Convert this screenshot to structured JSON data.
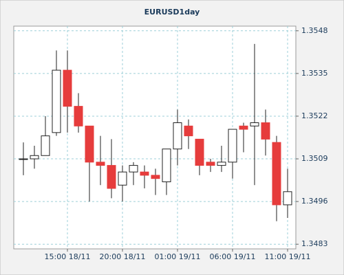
{
  "chart_data": {
    "type": "candlestick",
    "title": "EURUSD1day",
    "categories": [
      null,
      null,
      null,
      null,
      "15:00 18/11",
      null,
      null,
      null,
      null,
      "20:00 18/11",
      null,
      null,
      null,
      null,
      "01:00 19/11",
      null,
      null,
      null,
      null,
      "06:00 19/11",
      null,
      null,
      null,
      null,
      "11:00 19/11"
    ],
    "open": [
      1.3509,
      1.3509,
      1.351,
      1.3517,
      1.3536,
      1.3525,
      1.3519,
      1.3508,
      1.3507,
      1.3501,
      1.3505,
      1.3505,
      1.3504,
      1.3502,
      1.3512,
      1.3519,
      1.3515,
      1.3508,
      1.3507,
      1.3508,
      1.3519,
      1.3519,
      1.352,
      1.3514,
      1.3495
    ],
    "high": [
      1.3514,
      1.3513,
      1.3522,
      1.3542,
      1.3542,
      1.3529,
      1.3519,
      1.3516,
      1.3515,
      1.3507,
      1.3508,
      1.3507,
      1.3506,
      1.3512,
      1.3524,
      1.3521,
      1.3515,
      1.3509,
      1.3513,
      1.3518,
      1.352,
      1.3544,
      1.3524,
      1.3516,
      1.3506
    ],
    "low": [
      1.3504,
      1.3506,
      1.351,
      1.3516,
      1.3517,
      1.3517,
      1.3496,
      1.3501,
      1.3497,
      1.3496,
      1.3501,
      1.35,
      1.3498,
      1.3498,
      1.3507,
      1.3512,
      1.3504,
      1.3505,
      1.3505,
      1.3503,
      1.3511,
      1.3501,
      1.351,
      1.349,
      1.3491
    ],
    "close": [
      1.3509,
      1.351,
      1.3516,
      1.3536,
      1.3525,
      1.3519,
      1.3508,
      1.3507,
      1.35,
      1.3505,
      1.3507,
      1.3504,
      1.3503,
      1.3512,
      1.352,
      1.3516,
      1.3507,
      1.3507,
      1.3508,
      1.3518,
      1.3518,
      1.352,
      1.3515,
      1.3495,
      1.3499
    ],
    "up_color": "#ffffff",
    "down_color": "#e63c3c",
    "ylim": [
      1.3482,
      1.3549
    ],
    "yticks": [
      1.3483,
      1.3496,
      1.3509,
      1.3522,
      1.3535,
      1.3548
    ],
    "grid": true
  }
}
